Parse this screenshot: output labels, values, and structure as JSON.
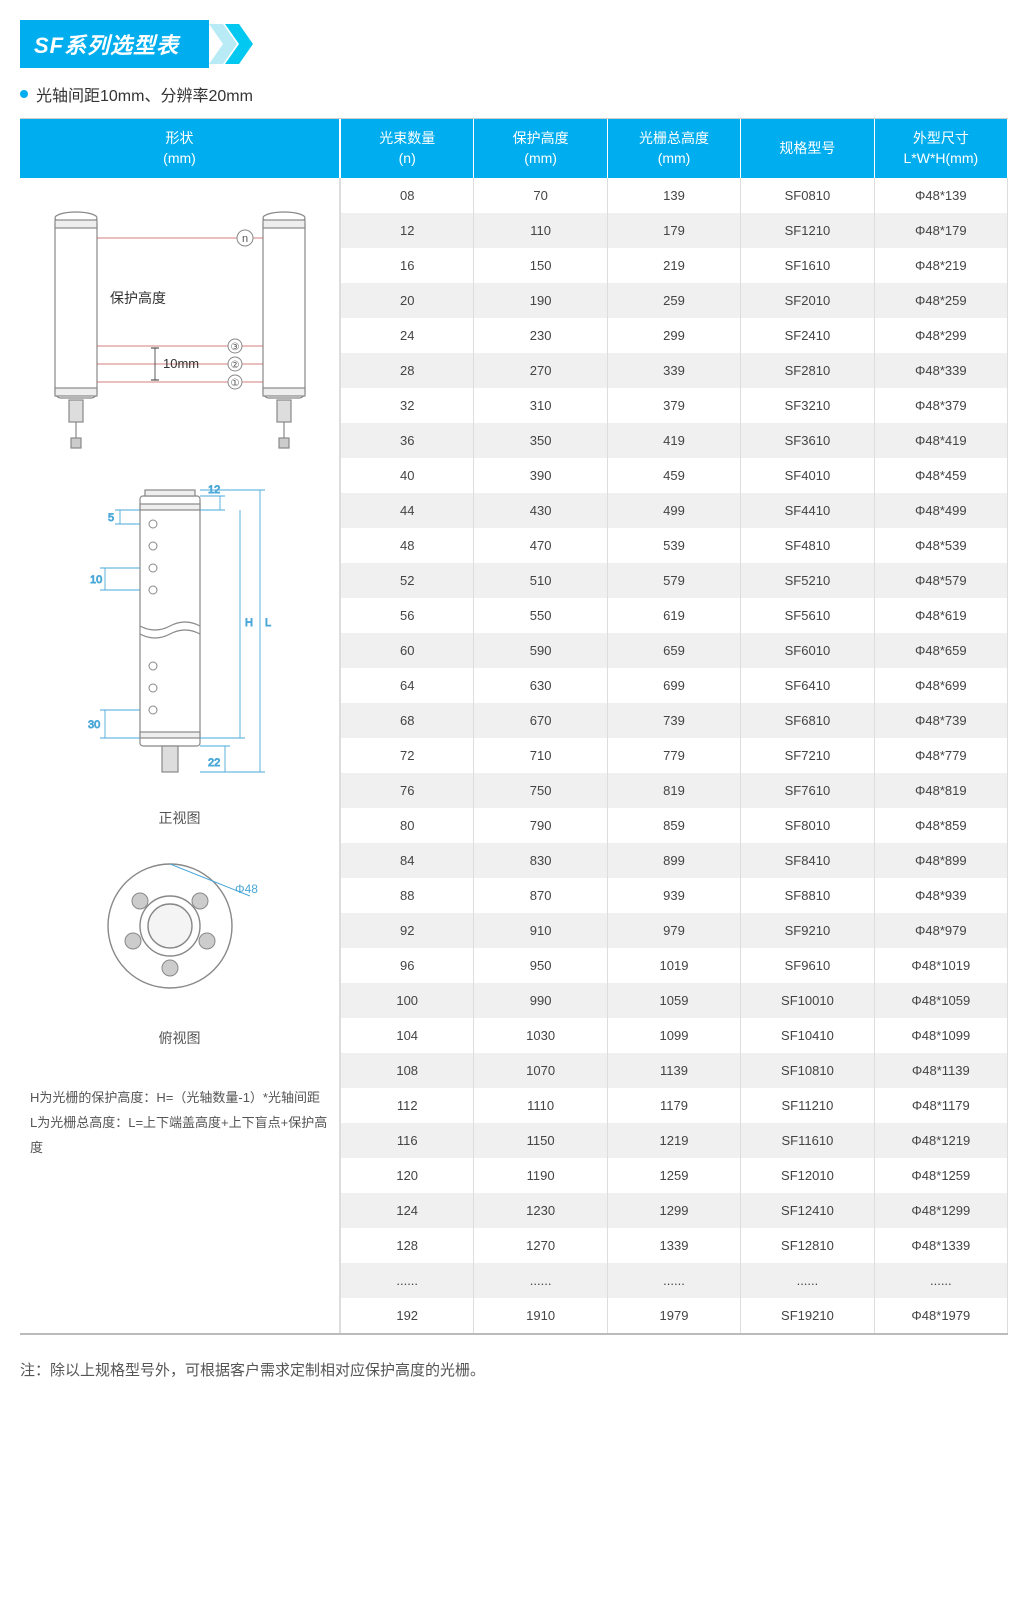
{
  "title": "SF系列选型表",
  "subtitle": "光轴间距10mm、分辨率20mm",
  "colors": {
    "accent": "#00aeef",
    "row_odd": "#f0f0f0",
    "row_even": "#ffffff",
    "dim_line": "#4aa8d8",
    "border": "#cccccc",
    "text": "#444444"
  },
  "table": {
    "shape_header_line1": "形状",
    "shape_header_line2": "(mm)",
    "columns": [
      {
        "line1": "光束数量",
        "line2": "(n)"
      },
      {
        "line1": "保护高度",
        "line2": "(mm)"
      },
      {
        "line1": "光栅总高度",
        "line2": "(mm)"
      },
      {
        "line1": "规格型号",
        "line2": ""
      },
      {
        "line1": "外型尺寸",
        "line2": "L*W*H(mm)"
      }
    ],
    "rows": [
      [
        "08",
        "70",
        "139",
        "SF0810",
        "Φ48*139"
      ],
      [
        "12",
        "110",
        "179",
        "SF1210",
        "Φ48*179"
      ],
      [
        "16",
        "150",
        "219",
        "SF1610",
        "Φ48*219"
      ],
      [
        "20",
        "190",
        "259",
        "SF2010",
        "Φ48*259"
      ],
      [
        "24",
        "230",
        "299",
        "SF2410",
        "Φ48*299"
      ],
      [
        "28",
        "270",
        "339",
        "SF2810",
        "Φ48*339"
      ],
      [
        "32",
        "310",
        "379",
        "SF3210",
        "Φ48*379"
      ],
      [
        "36",
        "350",
        "419",
        "SF3610",
        "Φ48*419"
      ],
      [
        "40",
        "390",
        "459",
        "SF4010",
        "Φ48*459"
      ],
      [
        "44",
        "430",
        "499",
        "SF4410",
        "Φ48*499"
      ],
      [
        "48",
        "470",
        "539",
        "SF4810",
        "Φ48*539"
      ],
      [
        "52",
        "510",
        "579",
        "SF5210",
        "Φ48*579"
      ],
      [
        "56",
        "550",
        "619",
        "SF5610",
        "Φ48*619"
      ],
      [
        "60",
        "590",
        "659",
        "SF6010",
        "Φ48*659"
      ],
      [
        "64",
        "630",
        "699",
        "SF6410",
        "Φ48*699"
      ],
      [
        "68",
        "670",
        "739",
        "SF6810",
        "Φ48*739"
      ],
      [
        "72",
        "710",
        "779",
        "SF7210",
        "Φ48*779"
      ],
      [
        "76",
        "750",
        "819",
        "SF7610",
        "Φ48*819"
      ],
      [
        "80",
        "790",
        "859",
        "SF8010",
        "Φ48*859"
      ],
      [
        "84",
        "830",
        "899",
        "SF8410",
        "Φ48*899"
      ],
      [
        "88",
        "870",
        "939",
        "SF8810",
        "Φ48*939"
      ],
      [
        "92",
        "910",
        "979",
        "SF9210",
        "Φ48*979"
      ],
      [
        "96",
        "950",
        "1019",
        "SF9610",
        "Φ48*1019"
      ],
      [
        "100",
        "990",
        "1059",
        "SF10010",
        "Φ48*1059"
      ],
      [
        "104",
        "1030",
        "1099",
        "SF10410",
        "Φ48*1099"
      ],
      [
        "108",
        "1070",
        "1139",
        "SF10810",
        "Φ48*1139"
      ],
      [
        "112",
        "1110",
        "1179",
        "SF11210",
        "Φ48*1179"
      ],
      [
        "116",
        "1150",
        "1219",
        "SF11610",
        "Φ48*1219"
      ],
      [
        "120",
        "1190",
        "1259",
        "SF12010",
        "Φ48*1259"
      ],
      [
        "124",
        "1230",
        "1299",
        "SF12410",
        "Φ48*1299"
      ],
      [
        "128",
        "1270",
        "1339",
        "SF12810",
        "Φ48*1339"
      ],
      [
        "......",
        "......",
        "......",
        "......",
        "......"
      ],
      [
        "192",
        "1910",
        "1979",
        "SF19210",
        "Φ48*1979"
      ]
    ]
  },
  "diagrams": {
    "pair": {
      "label_protect": "保护高度",
      "label_spacing": "10mm",
      "n_label": "n",
      "beam_marks": [
        "③",
        "②",
        "①"
      ]
    },
    "front": {
      "caption": "正视图",
      "dims": {
        "top_gap": "12",
        "side": "5",
        "pitch": "10",
        "bottom_gap": "30",
        "tail": "22",
        "H": "H",
        "L": "L"
      }
    },
    "top": {
      "caption": "俯视图",
      "diameter": "Φ48"
    },
    "formula_H": "H为光栅的保护高度：H=（光轴数量-1）*光轴间距",
    "formula_L": "L为光栅总高度：L=上下端盖高度+上下盲点+保护高度"
  },
  "footnote": "注：除以上规格型号外，可根据客户需求定制相对应保护高度的光栅。"
}
